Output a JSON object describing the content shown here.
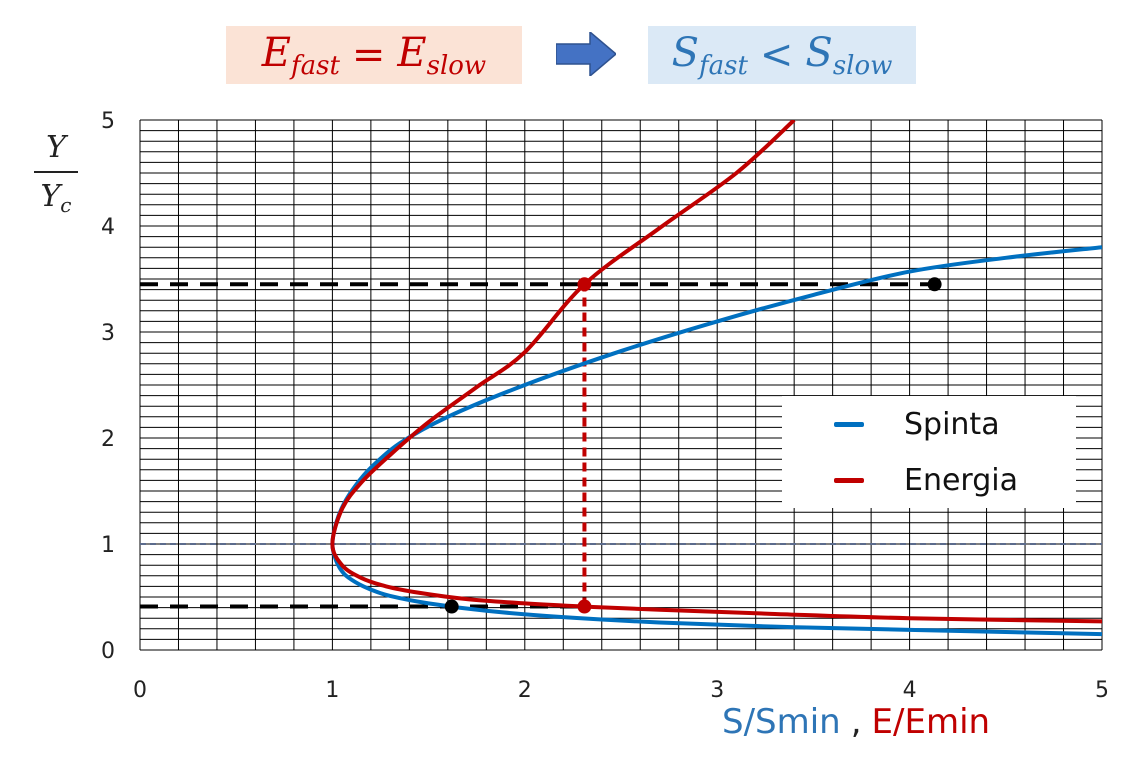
{
  "header": {
    "left_eq": {
      "E1": "E",
      "sub1": "fast",
      "op": "=",
      "E2": "E",
      "sub2": "slow"
    },
    "right_eq": {
      "S1": "S",
      "sub1": "fast",
      "op": "<",
      "S2": "S",
      "sub2": "slow"
    },
    "arrow_color": "#4472c4",
    "arrow_icon": "right-arrow-icon"
  },
  "ylabel": {
    "numerator": "Y",
    "denominator": "Y",
    "denominator_sub": "c"
  },
  "xlabel": {
    "s_part": "S/Smin",
    "separator": ",",
    "e_part": "E/Emin"
  },
  "legend": {
    "items": [
      {
        "label": "Spinta",
        "color": "#0070c0"
      },
      {
        "label": "Energia",
        "color": "#c00000"
      }
    ]
  },
  "chart_data": {
    "type": "line",
    "xlim": [
      0,
      5
    ],
    "ylim": [
      0,
      5
    ],
    "xticks": [
      "0",
      "1",
      "2",
      "3",
      "4",
      "5"
    ],
    "yticks": [
      "0",
      "1",
      "2",
      "3",
      "4",
      "5"
    ],
    "grid": true,
    "legend_position": "right",
    "series": [
      {
        "name": "Spinta",
        "color": "#0070c0",
        "x": [
          5.0,
          4.0,
          3.3,
          2.7,
          2.2,
          1.8,
          1.5,
          1.3,
          1.2,
          1.12,
          1.06,
          1.02,
          1.0,
          1.02,
          1.06,
          1.12,
          1.2,
          1.35,
          1.6,
          2.0,
          2.5,
          3.0,
          3.5,
          4.0,
          4.5,
          5.0
        ],
        "y": [
          0.15,
          0.19,
          0.22,
          0.26,
          0.31,
          0.37,
          0.44,
          0.51,
          0.57,
          0.64,
          0.72,
          0.84,
          1.0,
          1.2,
          1.38,
          1.55,
          1.72,
          1.95,
          2.2,
          2.5,
          2.82,
          3.1,
          3.35,
          3.57,
          3.7,
          3.8
        ]
      },
      {
        "name": "Energia",
        "color": "#c00000",
        "x": [
          5.0,
          4.0,
          3.3,
          2.7,
          2.31,
          2.0,
          1.7,
          1.45,
          1.28,
          1.15,
          1.05,
          1.0,
          1.05,
          1.15,
          1.3,
          1.5,
          1.75,
          2.0,
          2.31,
          2.7,
          3.1,
          3.4
        ],
        "y": [
          0.27,
          0.3,
          0.34,
          0.38,
          0.41,
          0.44,
          0.48,
          0.54,
          0.6,
          0.68,
          0.8,
          1.0,
          1.33,
          1.58,
          1.84,
          2.15,
          2.48,
          2.81,
          3.45,
          3.98,
          4.5,
          5.0
        ]
      }
    ],
    "reference_lines": [
      {
        "type": "horizontal",
        "y": 1.0,
        "style": "dashed-thin",
        "color": "#5b6b8c"
      },
      {
        "type": "horizontal",
        "y": 3.45,
        "x_from": 0,
        "x_to": 4.13,
        "style": "dashed",
        "color": "#000000"
      },
      {
        "type": "horizontal",
        "y": 0.41,
        "x_from": 0,
        "x_to": 2.31,
        "style": "dashed",
        "color": "#000000"
      },
      {
        "type": "vertical",
        "x": 2.31,
        "y_from": 0.41,
        "y_to": 3.45,
        "style": "dashed",
        "color": "#c00000"
      }
    ],
    "markers": [
      {
        "x": 2.31,
        "y": 3.45,
        "color": "#c00000"
      },
      {
        "x": 2.31,
        "y": 0.41,
        "color": "#c00000"
      },
      {
        "x": 4.13,
        "y": 3.45,
        "color": "#000000"
      },
      {
        "x": 1.62,
        "y": 0.41,
        "color": "#000000"
      }
    ]
  }
}
